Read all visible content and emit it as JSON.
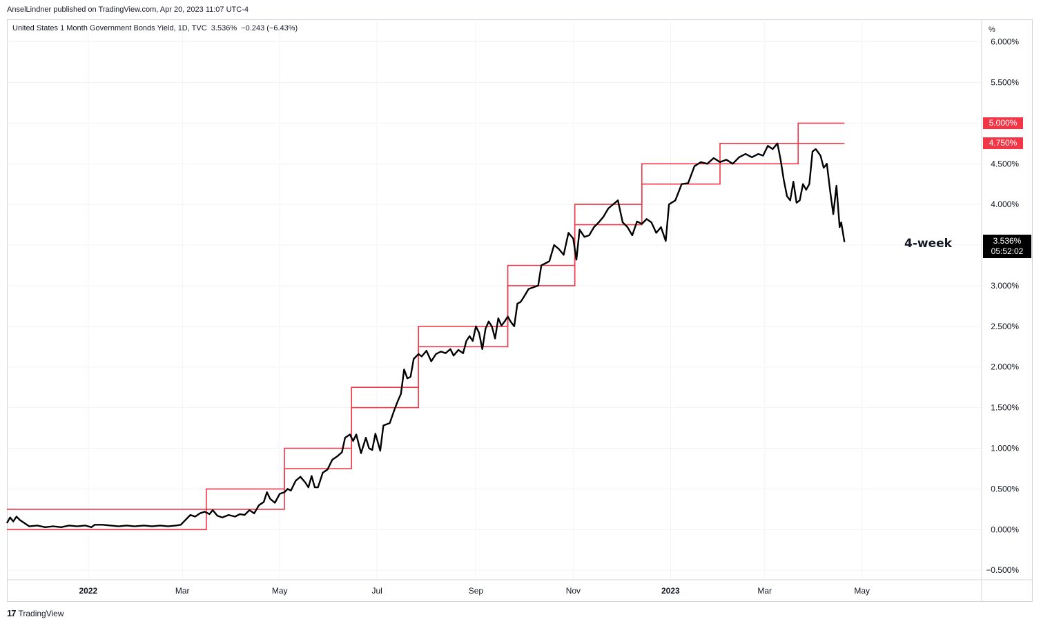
{
  "header": {
    "publisher": "AnselLindner published on TradingView.com, Apr 20, 2023 11:07 UTC-4"
  },
  "legend": {
    "symbol": "United States 1 Month Government Bonds Yield, 1D, TVC",
    "last": "3.536%",
    "change": "−0.243 (−6.43%)"
  },
  "price_badge": {
    "value": "3.536%",
    "countdown": "05:52:02"
  },
  "fed_badges": [
    "5.000%",
    "4.750%"
  ],
  "annotation": "4-week",
  "footer": {
    "brand": "TradingView"
  },
  "colors": {
    "series": "#000000",
    "fed_band": "#f23645",
    "grid": "#f0f3fa"
  },
  "chart_data": {
    "type": "line",
    "title": "United States 1 Month Government Bonds Yield, 1D, TVC",
    "ylabel": "%",
    "ylim": [
      -0.6,
      6.2
    ],
    "y_ticks": [
      "6.000%",
      "5.500%",
      "5.000%",
      "4.500%",
      "4.000%",
      "3.500%",
      "3.000%",
      "2.500%",
      "2.000%",
      "1.500%",
      "1.000%",
      "0.500%",
      "0.000%",
      "−0.500%"
    ],
    "y_tick_values": [
      6.0,
      5.5,
      5.0,
      4.5,
      4.0,
      3.5,
      3.0,
      2.5,
      2.0,
      1.5,
      1.0,
      0.5,
      0.0,
      -0.5
    ],
    "x_ticks": [
      {
        "label": "2022",
        "date": "2022-01-01",
        "bold": true
      },
      {
        "label": "Mar",
        "date": "2022-03-01"
      },
      {
        "label": "May",
        "date": "2022-05-01"
      },
      {
        "label": "Jul",
        "date": "2022-07-01"
      },
      {
        "label": "Sep",
        "date": "2022-09-01"
      },
      {
        "label": "Nov",
        "date": "2022-11-01"
      },
      {
        "label": "2023",
        "date": "2023-01-01",
        "bold": true
      },
      {
        "label": "Mar",
        "date": "2023-03-01"
      },
      {
        "label": "May",
        "date": "2023-05-01"
      }
    ],
    "x_range": [
      "2021-11-11",
      "2023-07-15"
    ],
    "grid": true,
    "fed_bands": [
      {
        "start": "2021-11-11",
        "end": "2022-03-16",
        "lower": 0.0,
        "upper": 0.25
      },
      {
        "start": "2022-03-16",
        "end": "2022-05-04",
        "lower": 0.25,
        "upper": 0.5
      },
      {
        "start": "2022-05-04",
        "end": "2022-06-15",
        "lower": 0.75,
        "upper": 1.0
      },
      {
        "start": "2022-06-15",
        "end": "2022-07-27",
        "lower": 1.5,
        "upper": 1.75
      },
      {
        "start": "2022-07-27",
        "end": "2022-09-21",
        "lower": 2.25,
        "upper": 2.5
      },
      {
        "start": "2022-09-21",
        "end": "2022-11-02",
        "lower": 3.0,
        "upper": 3.25
      },
      {
        "start": "2022-11-02",
        "end": "2022-12-14",
        "lower": 3.75,
        "upper": 4.0
      },
      {
        "start": "2022-12-14",
        "end": "2023-02-01",
        "lower": 4.25,
        "upper": 4.5
      },
      {
        "start": "2023-02-01",
        "end": "2023-03-22",
        "lower": 4.5,
        "upper": 4.75
      },
      {
        "start": "2023-03-22",
        "end": "2023-04-20",
        "lower": 4.75,
        "upper": 5.0
      }
    ],
    "series": [
      {
        "name": "United States 1 Month Government Bonds Yield",
        "points": [
          [
            "2021-11-11",
            0.08
          ],
          [
            "2021-11-13",
            0.15
          ],
          [
            "2021-11-15",
            0.1
          ],
          [
            "2021-11-17",
            0.16
          ],
          [
            "2021-11-19",
            0.12
          ],
          [
            "2021-11-22",
            0.08
          ],
          [
            "2021-11-25",
            0.04
          ],
          [
            "2021-11-30",
            0.05
          ],
          [
            "2021-12-05",
            0.03
          ],
          [
            "2021-12-10",
            0.04
          ],
          [
            "2021-12-15",
            0.03
          ],
          [
            "2021-12-20",
            0.05
          ],
          [
            "2021-12-25",
            0.04
          ],
          [
            "2021-12-30",
            0.05
          ],
          [
            "2022-01-03",
            0.03
          ],
          [
            "2022-01-05",
            0.06
          ],
          [
            "2022-01-10",
            0.06
          ],
          [
            "2022-01-15",
            0.05
          ],
          [
            "2022-01-20",
            0.04
          ],
          [
            "2022-01-25",
            0.05
          ],
          [
            "2022-01-30",
            0.04
          ],
          [
            "2022-02-05",
            0.05
          ],
          [
            "2022-02-10",
            0.04
          ],
          [
            "2022-02-15",
            0.05
          ],
          [
            "2022-02-20",
            0.04
          ],
          [
            "2022-02-25",
            0.05
          ],
          [
            "2022-02-28",
            0.06
          ],
          [
            "2022-03-03",
            0.12
          ],
          [
            "2022-03-06",
            0.18
          ],
          [
            "2022-03-09",
            0.16
          ],
          [
            "2022-03-12",
            0.2
          ],
          [
            "2022-03-15",
            0.22
          ],
          [
            "2022-03-18",
            0.19
          ],
          [
            "2022-03-20",
            0.24
          ],
          [
            "2022-03-23",
            0.17
          ],
          [
            "2022-03-26",
            0.15
          ],
          [
            "2022-03-30",
            0.18
          ],
          [
            "2022-04-03",
            0.16
          ],
          [
            "2022-04-06",
            0.19
          ],
          [
            "2022-04-09",
            0.18
          ],
          [
            "2022-04-12",
            0.24
          ],
          [
            "2022-04-15",
            0.2
          ],
          [
            "2022-04-18",
            0.3
          ],
          [
            "2022-04-21",
            0.34
          ],
          [
            "2022-04-23",
            0.46
          ],
          [
            "2022-04-25",
            0.38
          ],
          [
            "2022-04-28",
            0.33
          ],
          [
            "2022-05-01",
            0.44
          ],
          [
            "2022-05-04",
            0.46
          ],
          [
            "2022-05-06",
            0.5
          ],
          [
            "2022-05-08",
            0.48
          ],
          [
            "2022-05-11",
            0.6
          ],
          [
            "2022-05-14",
            0.65
          ],
          [
            "2022-05-17",
            0.58
          ],
          [
            "2022-05-19",
            0.52
          ],
          [
            "2022-05-21",
            0.66
          ],
          [
            "2022-05-23",
            0.52
          ],
          [
            "2022-05-25",
            0.52
          ],
          [
            "2022-05-28",
            0.7
          ],
          [
            "2022-05-31",
            0.74
          ],
          [
            "2022-06-03",
            0.86
          ],
          [
            "2022-06-06",
            0.9
          ],
          [
            "2022-06-09",
            0.95
          ],
          [
            "2022-06-11",
            1.13
          ],
          [
            "2022-06-14",
            1.17
          ],
          [
            "2022-06-16",
            1.09
          ],
          [
            "2022-06-18",
            1.17
          ],
          [
            "2022-06-21",
            0.94
          ],
          [
            "2022-06-24",
            1.13
          ],
          [
            "2022-06-26",
            1.0
          ],
          [
            "2022-06-28",
            0.98
          ],
          [
            "2022-06-30",
            1.18
          ],
          [
            "2022-07-03",
            0.97
          ],
          [
            "2022-07-05",
            1.28
          ],
          [
            "2022-07-09",
            1.31
          ],
          [
            "2022-07-12",
            1.48
          ],
          [
            "2022-07-14",
            1.58
          ],
          [
            "2022-07-16",
            1.67
          ],
          [
            "2022-07-18",
            1.97
          ],
          [
            "2022-07-20",
            1.86
          ],
          [
            "2022-07-22",
            1.88
          ],
          [
            "2022-07-24",
            2.1
          ],
          [
            "2022-07-27",
            2.16
          ],
          [
            "2022-07-29",
            2.13
          ],
          [
            "2022-08-01",
            2.2
          ],
          [
            "2022-08-04",
            2.07
          ],
          [
            "2022-08-07",
            2.16
          ],
          [
            "2022-08-10",
            2.19
          ],
          [
            "2022-08-13",
            2.17
          ],
          [
            "2022-08-16",
            2.22
          ],
          [
            "2022-08-18",
            2.14
          ],
          [
            "2022-08-21",
            2.21
          ],
          [
            "2022-08-24",
            2.17
          ],
          [
            "2022-08-26",
            2.32
          ],
          [
            "2022-08-28",
            2.38
          ],
          [
            "2022-08-30",
            2.32
          ],
          [
            "2022-09-01",
            2.5
          ],
          [
            "2022-09-03",
            2.42
          ],
          [
            "2022-09-05",
            2.22
          ],
          [
            "2022-09-07",
            2.47
          ],
          [
            "2022-09-09",
            2.56
          ],
          [
            "2022-09-11",
            2.5
          ],
          [
            "2022-09-13",
            2.35
          ],
          [
            "2022-09-15",
            2.6
          ],
          [
            "2022-09-17",
            2.51
          ],
          [
            "2022-09-19",
            2.56
          ],
          [
            "2022-09-21",
            2.62
          ],
          [
            "2022-09-23",
            2.55
          ],
          [
            "2022-09-25",
            2.5
          ],
          [
            "2022-09-27",
            2.78
          ],
          [
            "2022-09-29",
            2.8
          ],
          [
            "2022-10-01",
            2.86
          ],
          [
            "2022-10-04",
            2.96
          ],
          [
            "2022-10-07",
            2.98
          ],
          [
            "2022-10-10",
            3.0
          ],
          [
            "2022-10-12",
            3.25
          ],
          [
            "2022-10-15",
            3.28
          ],
          [
            "2022-10-17",
            3.3
          ],
          [
            "2022-10-20",
            3.5
          ],
          [
            "2022-10-23",
            3.45
          ],
          [
            "2022-10-26",
            3.38
          ],
          [
            "2022-10-29",
            3.65
          ],
          [
            "2022-11-01",
            3.58
          ],
          [
            "2022-11-03",
            3.32
          ],
          [
            "2022-11-05",
            3.69
          ],
          [
            "2022-11-08",
            3.6
          ],
          [
            "2022-11-11",
            3.62
          ],
          [
            "2022-11-14",
            3.72
          ],
          [
            "2022-11-17",
            3.78
          ],
          [
            "2022-11-20",
            3.85
          ],
          [
            "2022-11-23",
            3.95
          ],
          [
            "2022-11-26",
            4.0
          ],
          [
            "2022-11-29",
            4.05
          ],
          [
            "2022-12-02",
            3.78
          ],
          [
            "2022-12-05",
            3.72
          ],
          [
            "2022-12-08",
            3.62
          ],
          [
            "2022-12-11",
            3.79
          ],
          [
            "2022-12-14",
            3.76
          ],
          [
            "2022-12-17",
            3.82
          ],
          [
            "2022-12-20",
            3.78
          ],
          [
            "2022-12-23",
            3.65
          ],
          [
            "2022-12-26",
            3.72
          ],
          [
            "2022-12-29",
            3.55
          ],
          [
            "2022-12-31",
            4.0
          ],
          [
            "2023-01-04",
            4.05
          ],
          [
            "2023-01-08",
            4.25
          ],
          [
            "2023-01-12",
            4.26
          ],
          [
            "2023-01-16",
            4.47
          ],
          [
            "2023-01-20",
            4.52
          ],
          [
            "2023-01-24",
            4.5
          ],
          [
            "2023-01-28",
            4.57
          ],
          [
            "2023-02-01",
            4.52
          ],
          [
            "2023-02-05",
            4.55
          ],
          [
            "2023-02-09",
            4.5
          ],
          [
            "2023-02-13",
            4.58
          ],
          [
            "2023-02-17",
            4.62
          ],
          [
            "2023-02-21",
            4.58
          ],
          [
            "2023-02-25",
            4.62
          ],
          [
            "2023-02-28",
            4.6
          ],
          [
            "2023-03-03",
            4.72
          ],
          [
            "2023-03-06",
            4.68
          ],
          [
            "2023-03-09",
            4.75
          ],
          [
            "2023-03-11",
            4.55
          ],
          [
            "2023-03-13",
            4.3
          ],
          [
            "2023-03-15",
            4.1
          ],
          [
            "2023-03-17",
            4.05
          ],
          [
            "2023-03-19",
            4.28
          ],
          [
            "2023-03-21",
            4.02
          ],
          [
            "2023-03-23",
            4.05
          ],
          [
            "2023-03-25",
            4.25
          ],
          [
            "2023-03-27",
            4.18
          ],
          [
            "2023-03-29",
            4.25
          ],
          [
            "2023-03-31",
            4.65
          ],
          [
            "2023-04-02",
            4.68
          ],
          [
            "2023-04-05",
            4.6
          ],
          [
            "2023-04-07",
            4.45
          ],
          [
            "2023-04-09",
            4.5
          ],
          [
            "2023-04-11",
            4.17
          ],
          [
            "2023-04-13",
            3.88
          ],
          [
            "2023-04-15",
            4.23
          ],
          [
            "2023-04-17",
            3.72
          ],
          [
            "2023-04-18",
            3.78
          ],
          [
            "2023-04-20",
            3.536
          ]
        ]
      }
    ]
  }
}
